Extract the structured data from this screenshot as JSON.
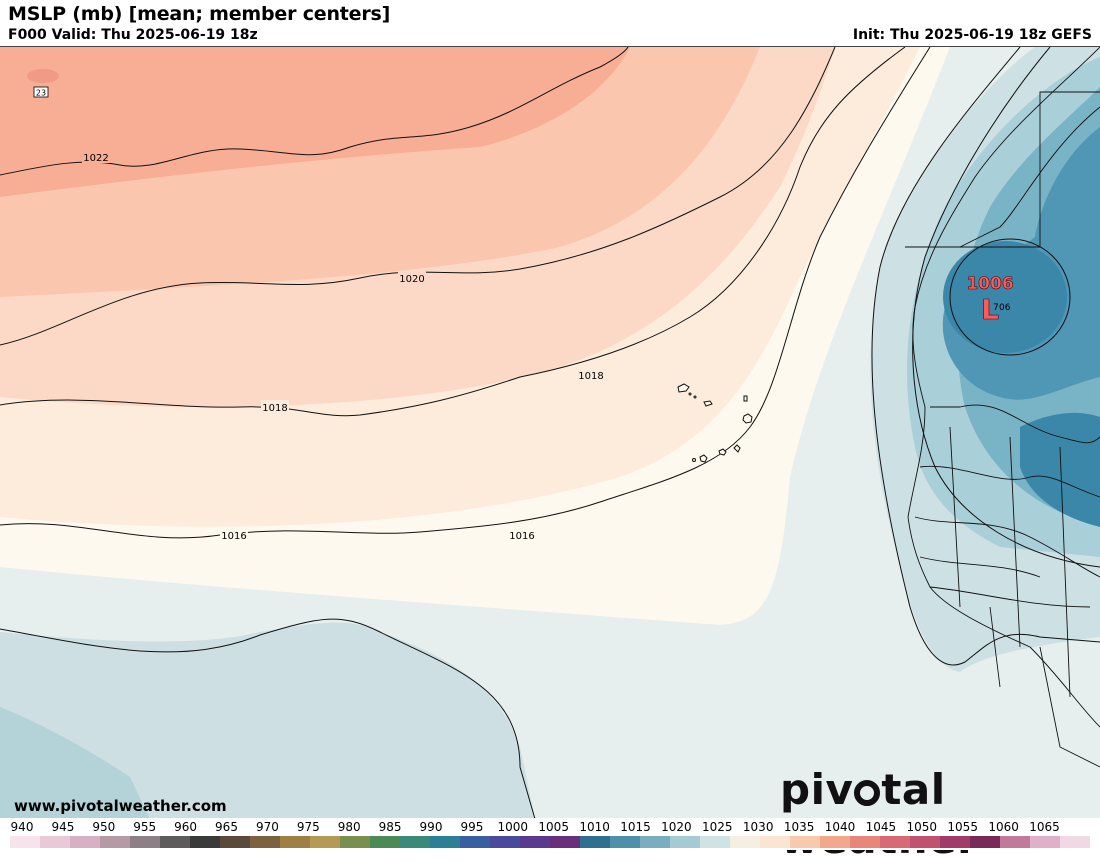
{
  "header": {
    "title": "MSLP (mb) [mean; member centers]",
    "valid": "F000 Valid: Thu 2025-06-19 18z",
    "init": "Init: Thu 2025-06-19 18z GEFS"
  },
  "map": {
    "isobar_labels": [
      "1022",
      "1020",
      "1018",
      "1018",
      "1016",
      "1016"
    ],
    "low_center": {
      "symbol": "L",
      "pressure": "1006",
      "member_count": "7",
      "member_value": "06"
    },
    "corner_member_label": "23"
  },
  "footer": {
    "url": "www.pivotalweather.com",
    "brand_before": "piv",
    "brand_after": "tal weather"
  },
  "legend": {
    "labels": [
      "940",
      "945",
      "950",
      "955",
      "960",
      "965",
      "970",
      "975",
      "980",
      "985",
      "990",
      "995",
      "1000",
      "1005",
      "1010",
      "1015",
      "1020",
      "1025",
      "1030",
      "1035",
      "1040",
      "1045",
      "1050",
      "1055",
      "1060",
      "1065"
    ],
    "colors": [
      "#f6e3ec",
      "#e9c9d8",
      "#d8b0c3",
      "#b59aa6",
      "#8c7f85",
      "#5f5a5c",
      "#3a3a3a",
      "#5b4a3a",
      "#7d6240",
      "#a07f45",
      "#b59a55",
      "#7a8f4d",
      "#4c8a55",
      "#3a8a7a",
      "#2d7f95",
      "#3a5fa0",
      "#4a4a9c",
      "#5a3a8f",
      "#6a2f7a",
      "#2f6f8f",
      "#4f8fa9",
      "#78aec0",
      "#a4cad3",
      "#cfe2e4",
      "#f5efe2",
      "#fbe5d0",
      "#f9c9ad",
      "#f2a88c",
      "#e8867a",
      "#d96a73",
      "#c2506f",
      "#a23a6a",
      "#7a2a5a",
      "#c07a9a",
      "#e0b0c8",
      "#f0d8e4"
    ]
  }
}
